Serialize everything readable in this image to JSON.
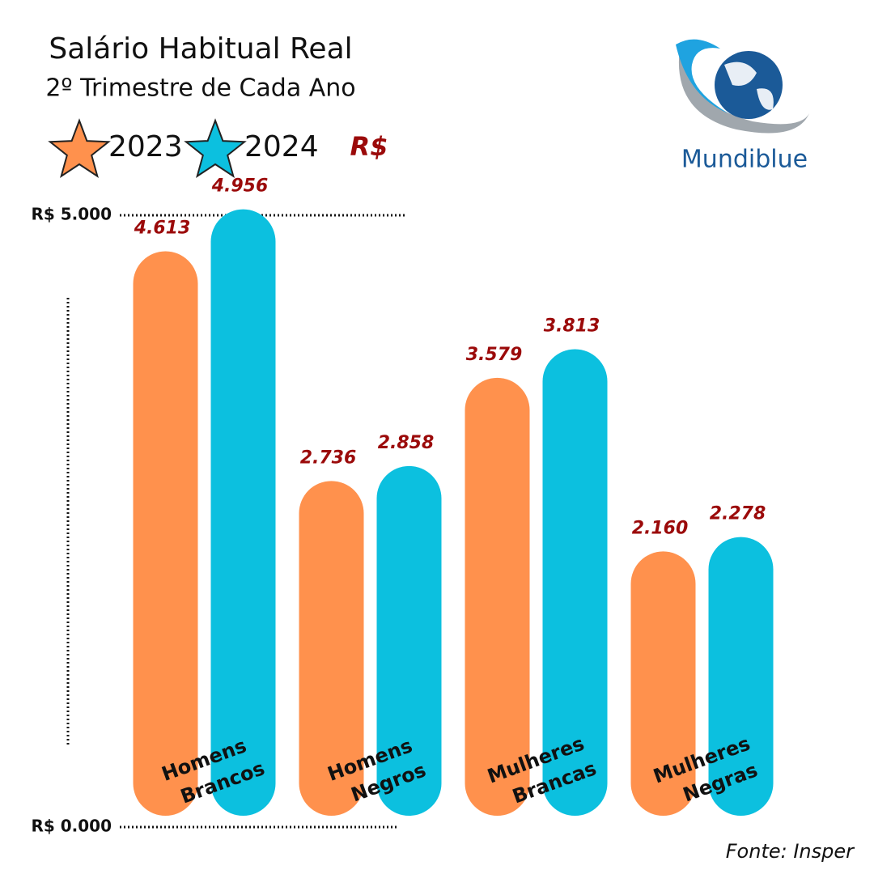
{
  "chart_data": {
    "type": "bar",
    "title": "Salário Habitual Real",
    "subtitle": "2º Trimestre de Cada Ano",
    "unit": "R$",
    "source": "Fonte: Insper",
    "brand": "Mundiblue",
    "categories": [
      "Homens Brancos",
      "Homens Negros",
      "Mulheres Brancas",
      "Mulheres Negras"
    ],
    "series": [
      {
        "name": "2023",
        "color": "#ff914d",
        "values": [
          4613,
          2736,
          3579,
          2160
        ],
        "value_labels": [
          "4.613",
          "2.736",
          "3.579",
          "2.160"
        ]
      },
      {
        "name": "2024",
        "color": "#0cc0df",
        "values": [
          4956,
          2858,
          3813,
          2278
        ],
        "value_labels": [
          "4.956",
          "2.858",
          "3.813",
          "2.278"
        ]
      }
    ],
    "ylim": [
      0,
      5000
    ],
    "yticks": [
      {
        "value": 0,
        "label": "R$ 0.000"
      },
      {
        "value": 5000,
        "label": "R$ 5.000"
      }
    ]
  }
}
